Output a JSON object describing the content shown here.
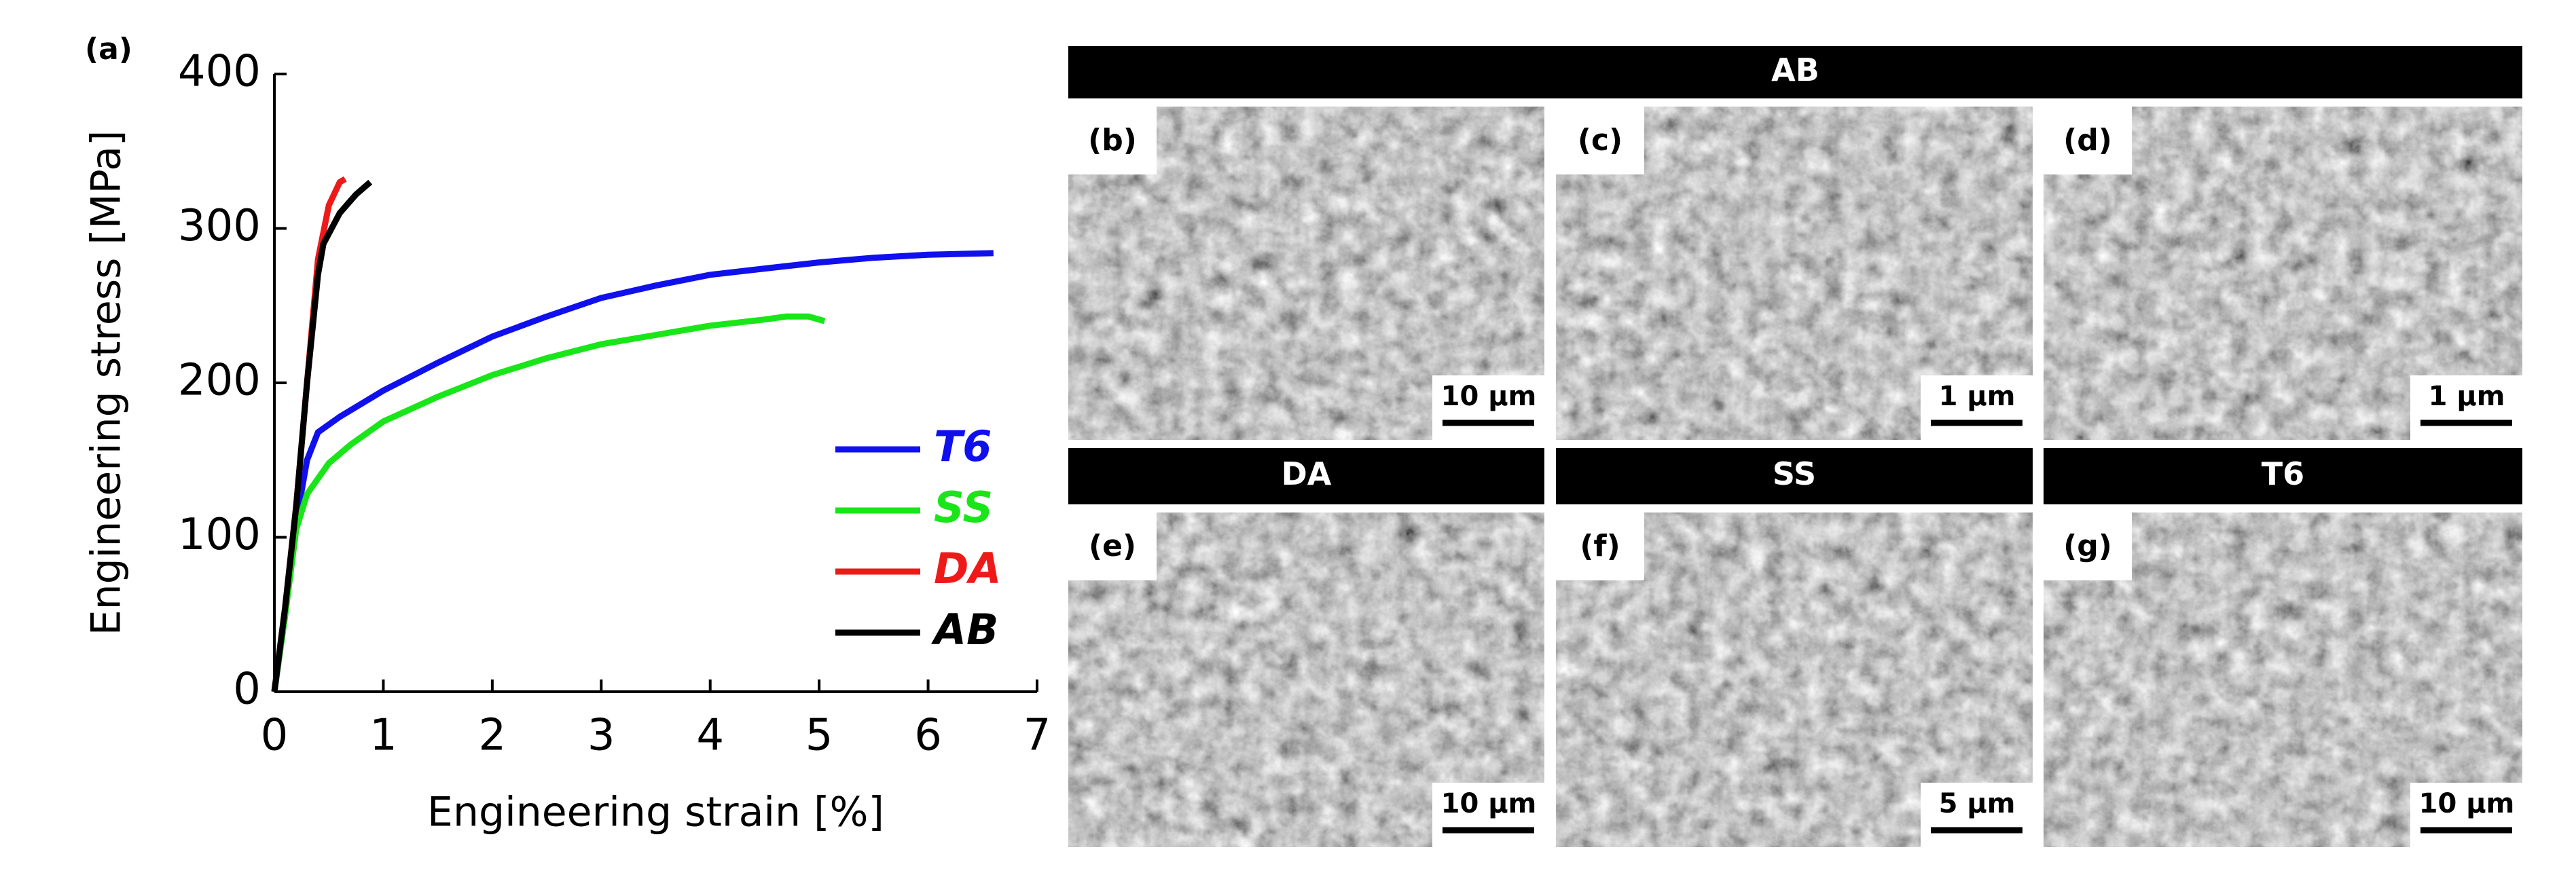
{
  "label_a": "(a)",
  "chart_data": {
    "type": "line",
    "xlabel": "Engineering strain [%]",
    "ylabel": "Engineering stress [MPa]",
    "xlim": [
      0,
      7
    ],
    "ylim": [
      0,
      400
    ],
    "xticks": [
      0,
      1,
      2,
      3,
      4,
      5,
      6,
      7
    ],
    "yticks": [
      0,
      100,
      200,
      300,
      400
    ],
    "series": [
      {
        "name": "T6",
        "color": "#1010ee",
        "x": [
          0,
          0.1,
          0.2,
          0.3,
          0.4,
          0.6,
          1,
          1.5,
          2,
          2.5,
          3,
          3.5,
          4,
          4.5,
          5,
          5.5,
          6,
          6.6
        ],
        "values": [
          0,
          50,
          110,
          150,
          168,
          178,
          195,
          213,
          230,
          243,
          255,
          263,
          270,
          274,
          278,
          281,
          283,
          284
        ]
      },
      {
        "name": "SS",
        "color": "#19e619",
        "x": [
          0,
          0.1,
          0.2,
          0.3,
          0.5,
          0.7,
          1,
          1.5,
          2,
          2.5,
          3,
          3.5,
          4,
          4.5,
          4.7,
          4.9,
          5.05
        ],
        "values": [
          0,
          50,
          105,
          128,
          148,
          160,
          175,
          191,
          205,
          216,
          225,
          231,
          237,
          241,
          243,
          243,
          240
        ]
      },
      {
        "name": "DA",
        "color": "#ee1a1a",
        "x": [
          0,
          0.1,
          0.2,
          0.3,
          0.4,
          0.5,
          0.6,
          0.65
        ],
        "values": [
          0,
          55,
          120,
          200,
          280,
          315,
          330,
          332
        ]
      },
      {
        "name": "AB",
        "color": "#000000",
        "x": [
          0,
          0.1,
          0.2,
          0.3,
          0.4,
          0.45,
          0.6,
          0.75,
          0.88
        ],
        "values": [
          0,
          55,
          120,
          200,
          270,
          290,
          310,
          322,
          330
        ]
      }
    ]
  },
  "sem": {
    "groups": [
      "AB",
      "DA",
      "SS",
      "T6"
    ],
    "panels": [
      {
        "label": "(b)",
        "scale": "10 µm"
      },
      {
        "label": "(c)",
        "scale": "1 µm"
      },
      {
        "label": "(d)",
        "scale": "1 µm"
      },
      {
        "label": "(e)",
        "scale": "10 µm"
      },
      {
        "label": "(f)",
        "scale": "5 µm"
      },
      {
        "label": "(g)",
        "scale": "10 µm"
      }
    ]
  }
}
